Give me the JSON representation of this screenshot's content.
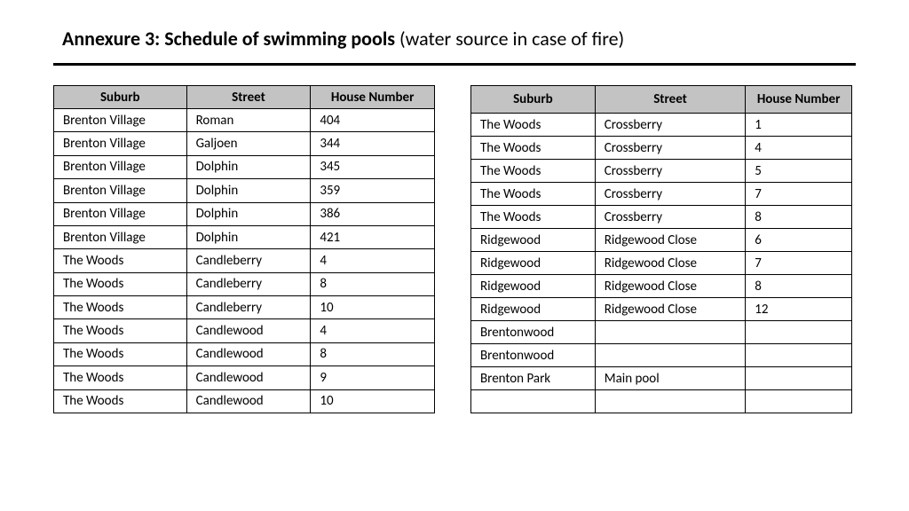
{
  "title_bold": "Annexure 3: Schedule of swimming pools",
  "title_normal": " (water source in case of fire)",
  "left": {
    "headers": [
      "Suburb",
      "Street",
      "House Number"
    ],
    "rows": [
      [
        "Brenton Village",
        "Roman",
        "404"
      ],
      [
        "Brenton Village",
        "Galjoen",
        "344"
      ],
      [
        "Brenton Village",
        "Dolphin",
        "345"
      ],
      [
        "Brenton Village",
        "Dolphin",
        "359"
      ],
      [
        "Brenton Village",
        "Dolphin",
        "386"
      ],
      [
        "Brenton Village",
        "Dolphin",
        "421"
      ],
      [
        "The Woods",
        "Candleberry",
        "4"
      ],
      [
        "The Woods",
        "Candleberry",
        "8"
      ],
      [
        "The Woods",
        "Candleberry",
        "10"
      ],
      [
        "The Woods",
        "Candlewood",
        "4"
      ],
      [
        "The Woods",
        "Candlewood",
        "8"
      ],
      [
        "The Woods",
        "Candlewood",
        "9"
      ],
      [
        "The Woods",
        "Candlewood",
        "10"
      ]
    ]
  },
  "right": {
    "headers": [
      "Suburb",
      "Street",
      "House Number"
    ],
    "rows": [
      [
        "The Woods",
        "Crossberry",
        "1"
      ],
      [
        "The Woods",
        "Crossberry",
        "4"
      ],
      [
        "The Woods",
        "Crossberry",
        "5"
      ],
      [
        "The Woods",
        "Crossberry",
        "7"
      ],
      [
        "The Woods",
        "Crossberry",
        "8"
      ],
      [
        "Ridgewood",
        "Ridgewood Close",
        "6"
      ],
      [
        "Ridgewood",
        "Ridgewood Close",
        "7"
      ],
      [
        "Ridgewood",
        "Ridgewood Close",
        "8"
      ],
      [
        "Ridgewood",
        "Ridgewood Close",
        "12"
      ],
      [
        "Brentonwood",
        "",
        ""
      ],
      [
        "Brentonwood",
        "",
        ""
      ],
      [
        "Brenton Park",
        "Main pool",
        ""
      ],
      [
        "",
        "",
        ""
      ]
    ]
  }
}
